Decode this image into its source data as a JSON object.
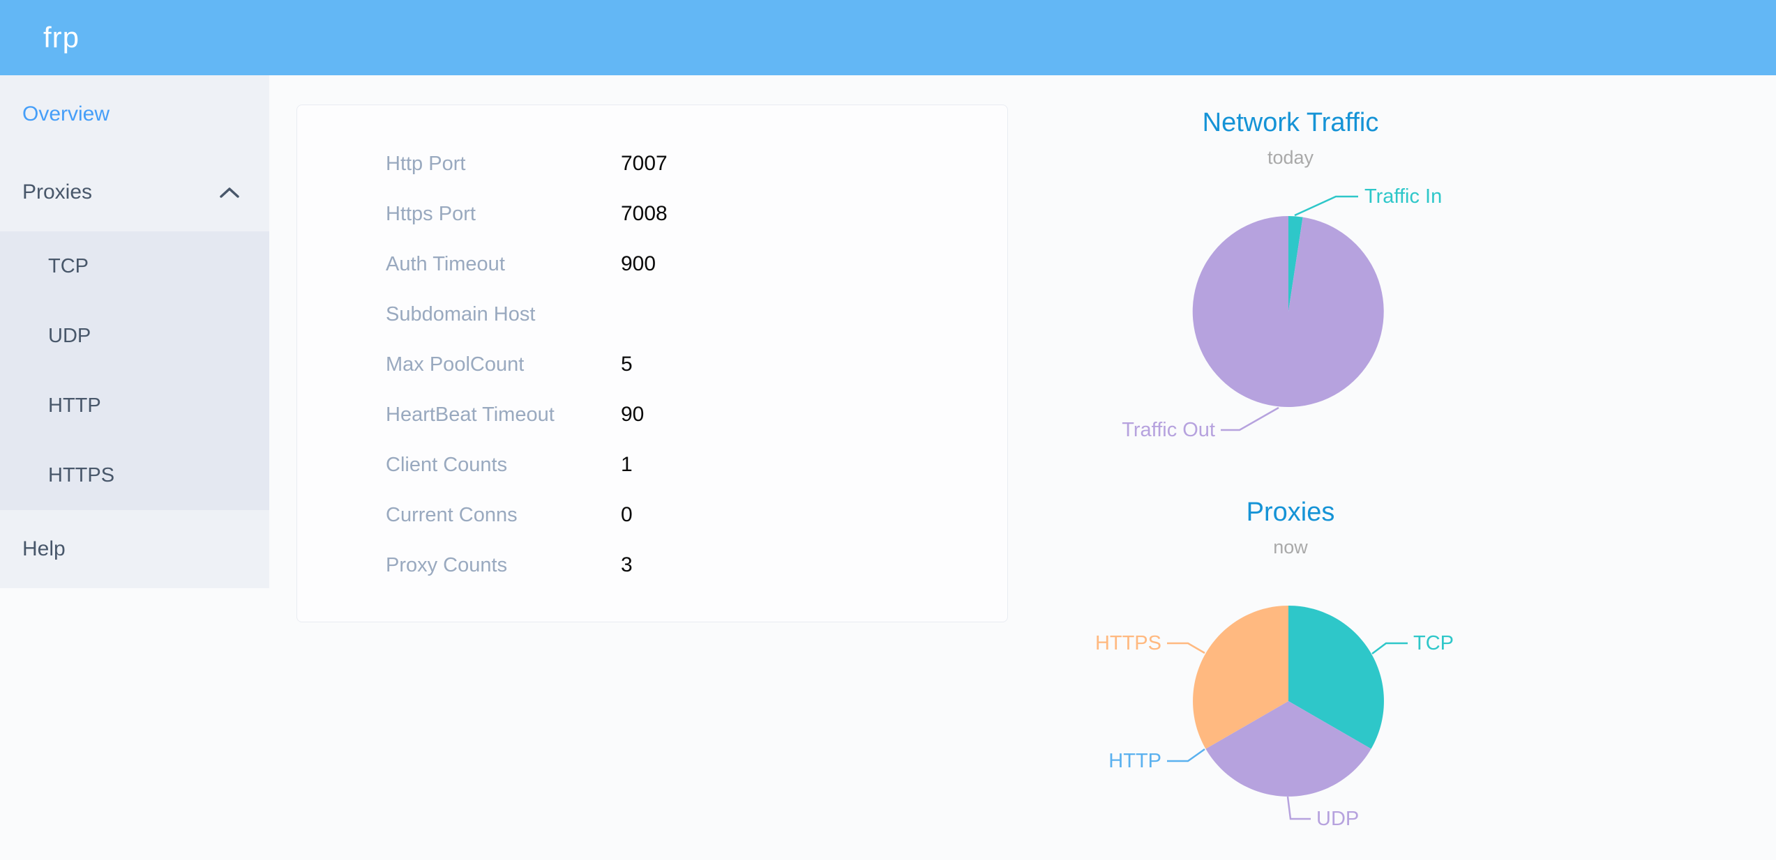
{
  "header": {
    "logo": "frp"
  },
  "sidebar": {
    "items": [
      {
        "id": "overview",
        "label": "Overview",
        "type": "item",
        "active": true
      },
      {
        "id": "proxies",
        "label": "Proxies",
        "type": "group",
        "expanded": true,
        "icon": "chevron-up-icon"
      },
      {
        "id": "tcp",
        "label": "TCP",
        "type": "subitem"
      },
      {
        "id": "udp",
        "label": "UDP",
        "type": "subitem"
      },
      {
        "id": "http",
        "label": "HTTP",
        "type": "subitem"
      },
      {
        "id": "https",
        "label": "HTTPS",
        "type": "subitem"
      },
      {
        "id": "help",
        "label": "Help",
        "type": "item"
      }
    ]
  },
  "overview_table": {
    "rows": [
      {
        "label": "Http Port",
        "value": "7007"
      },
      {
        "label": "Https Port",
        "value": "7008"
      },
      {
        "label": "Auth Timeout",
        "value": "900"
      },
      {
        "label": "Subdomain Host",
        "value": ""
      },
      {
        "label": "Max PoolCount",
        "value": "5"
      },
      {
        "label": "HeartBeat Timeout",
        "value": "90"
      },
      {
        "label": "Client Counts",
        "value": "1"
      },
      {
        "label": "Current Conns",
        "value": "0"
      },
      {
        "label": "Proxy Counts",
        "value": "3"
      }
    ]
  },
  "chart_data": [
    {
      "type": "pie",
      "title": "Network Traffic",
      "subtitle": "today",
      "unit": "% of total (estimated from slice angles)",
      "legend_position": "callout-labels",
      "series": [
        {
          "name": "Traffic In",
          "value": 2.4,
          "color": "#2ec7c9"
        },
        {
          "name": "Traffic Out",
          "value": 97.6,
          "color": "#b6a2de"
        }
      ]
    },
    {
      "type": "pie",
      "title": "Proxies",
      "subtitle": "now",
      "unit": "proxy count",
      "legend_position": "callout-labels",
      "series": [
        {
          "name": "TCP",
          "value": 1,
          "color": "#2ec7c9"
        },
        {
          "name": "UDP",
          "value": 1,
          "color": "#b6a2de"
        },
        {
          "name": "HTTP",
          "value": 0,
          "color": "#5ab1ef"
        },
        {
          "name": "HTTPS",
          "value": 1,
          "color": "#ffb980"
        }
      ]
    }
  ],
  "colors": {
    "header_bg": "#63b7f5",
    "sidebar_bg": "#eef1f6",
    "submenu_bg": "#e4e8f1",
    "menu_text": "#48576a",
    "menu_active": "#459ef8",
    "chart_title": "#1593d6",
    "chart_subtitle": "#a9a9a9",
    "table_label": "#99a9bf",
    "table_value": "#0a0a0a"
  }
}
